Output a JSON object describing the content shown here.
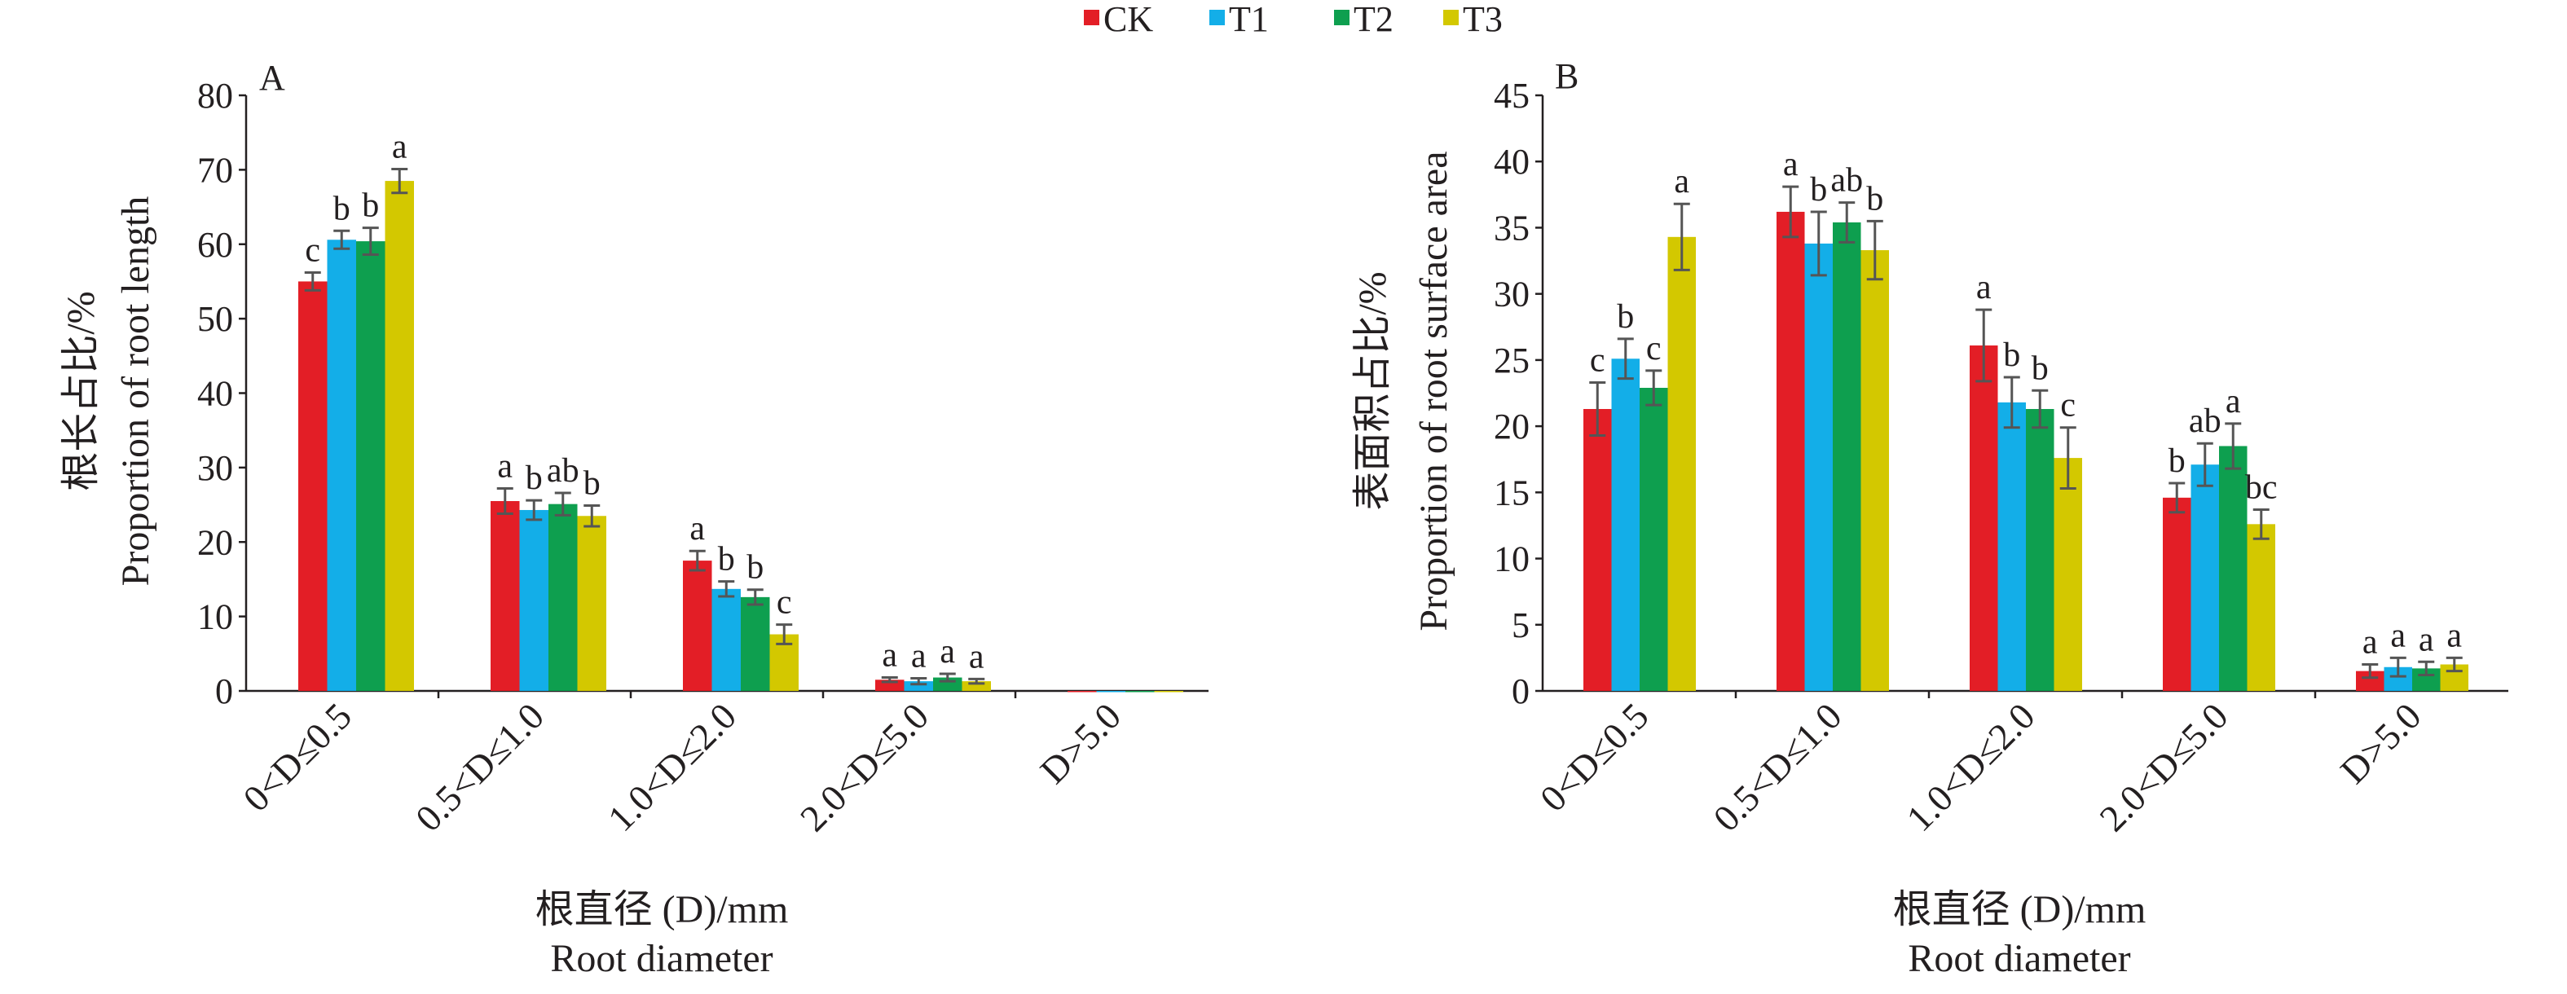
{
  "legend": [
    {
      "name": "CK",
      "color": "#e31e26"
    },
    {
      "name": "T1",
      "color": "#13aee8"
    },
    {
      "name": "T2",
      "color": "#0e9f4f"
    },
    {
      "name": "T3",
      "color": "#d3c800"
    }
  ],
  "x_title_cn": "根直径 (D)/mm",
  "x_title_en": "Root diameter",
  "chart_data": [
    {
      "panel": "A",
      "type": "bar",
      "ylabel_cn": "根长占比/%",
      "ylabel_en": "Proportion of root length",
      "ylim": [
        0,
        80
      ],
      "yticks": [
        0,
        10,
        20,
        30,
        40,
        50,
        60,
        70,
        80
      ],
      "categories": [
        "0<D≤0.5",
        "0.5<D≤1.0",
        "1.0<D≤2.0",
        "2.0<D≤5.0",
        "D>5.0"
      ],
      "series": [
        {
          "name": "CK",
          "values": [
            55.0,
            25.5,
            17.5,
            1.5,
            0
          ],
          "errors": [
            1.2,
            1.7,
            1.3,
            0.3,
            0
          ],
          "letters": [
            "c",
            "a",
            "a",
            "a",
            ""
          ]
        },
        {
          "name": "T1",
          "values": [
            60.6,
            24.3,
            13.7,
            1.3,
            0
          ],
          "errors": [
            1.2,
            1.3,
            1.0,
            0.4,
            0
          ],
          "letters": [
            "b",
            "b",
            "b",
            "a",
            ""
          ]
        },
        {
          "name": "T2",
          "values": [
            60.4,
            25.1,
            12.6,
            1.8,
            0
          ],
          "errors": [
            1.8,
            1.5,
            1.0,
            0.5,
            0
          ],
          "letters": [
            "b",
            "ab",
            "b",
            "a",
            ""
          ]
        },
        {
          "name": "T3",
          "values": [
            68.5,
            23.5,
            7.6,
            1.3,
            0
          ],
          "errors": [
            1.6,
            1.4,
            1.3,
            0.3,
            0
          ],
          "letters": [
            "a",
            "b",
            "c",
            "a",
            ""
          ]
        }
      ]
    },
    {
      "panel": "B",
      "type": "bar",
      "ylabel_cn": "表面积占比/%",
      "ylabel_en": "Proportion of root surface area",
      "ylim": [
        0,
        45
      ],
      "yticks": [
        0,
        5,
        10,
        15,
        20,
        25,
        30,
        35,
        40,
        45
      ],
      "categories": [
        "0<D≤0.5",
        "0.5<D≤1.0",
        "1.0<D≤2.0",
        "2.0<D≤5.0",
        "D>5.0"
      ],
      "series": [
        {
          "name": "CK",
          "values": [
            21.3,
            36.2,
            26.1,
            14.6,
            1.5
          ],
          "errors": [
            2.0,
            1.9,
            2.7,
            1.1,
            0.5
          ],
          "letters": [
            "c",
            "a",
            "a",
            "b",
            "a"
          ]
        },
        {
          "name": "T1",
          "values": [
            25.1,
            33.8,
            21.8,
            17.1,
            1.8
          ],
          "errors": [
            1.5,
            2.4,
            1.9,
            1.6,
            0.7
          ],
          "letters": [
            "b",
            "b",
            "b",
            "ab",
            "a"
          ]
        },
        {
          "name": "T2",
          "values": [
            22.9,
            35.4,
            21.3,
            18.5,
            1.7
          ],
          "errors": [
            1.3,
            1.5,
            1.4,
            1.7,
            0.5
          ],
          "letters": [
            "c",
            "ab",
            "b",
            "a",
            "a"
          ]
        },
        {
          "name": "T3",
          "values": [
            34.3,
            33.3,
            17.6,
            12.6,
            2.0
          ],
          "errors": [
            2.5,
            2.2,
            2.3,
            1.1,
            0.5
          ],
          "letters": [
            "a",
            "b",
            "c",
            "bc",
            "a"
          ]
        }
      ]
    }
  ]
}
